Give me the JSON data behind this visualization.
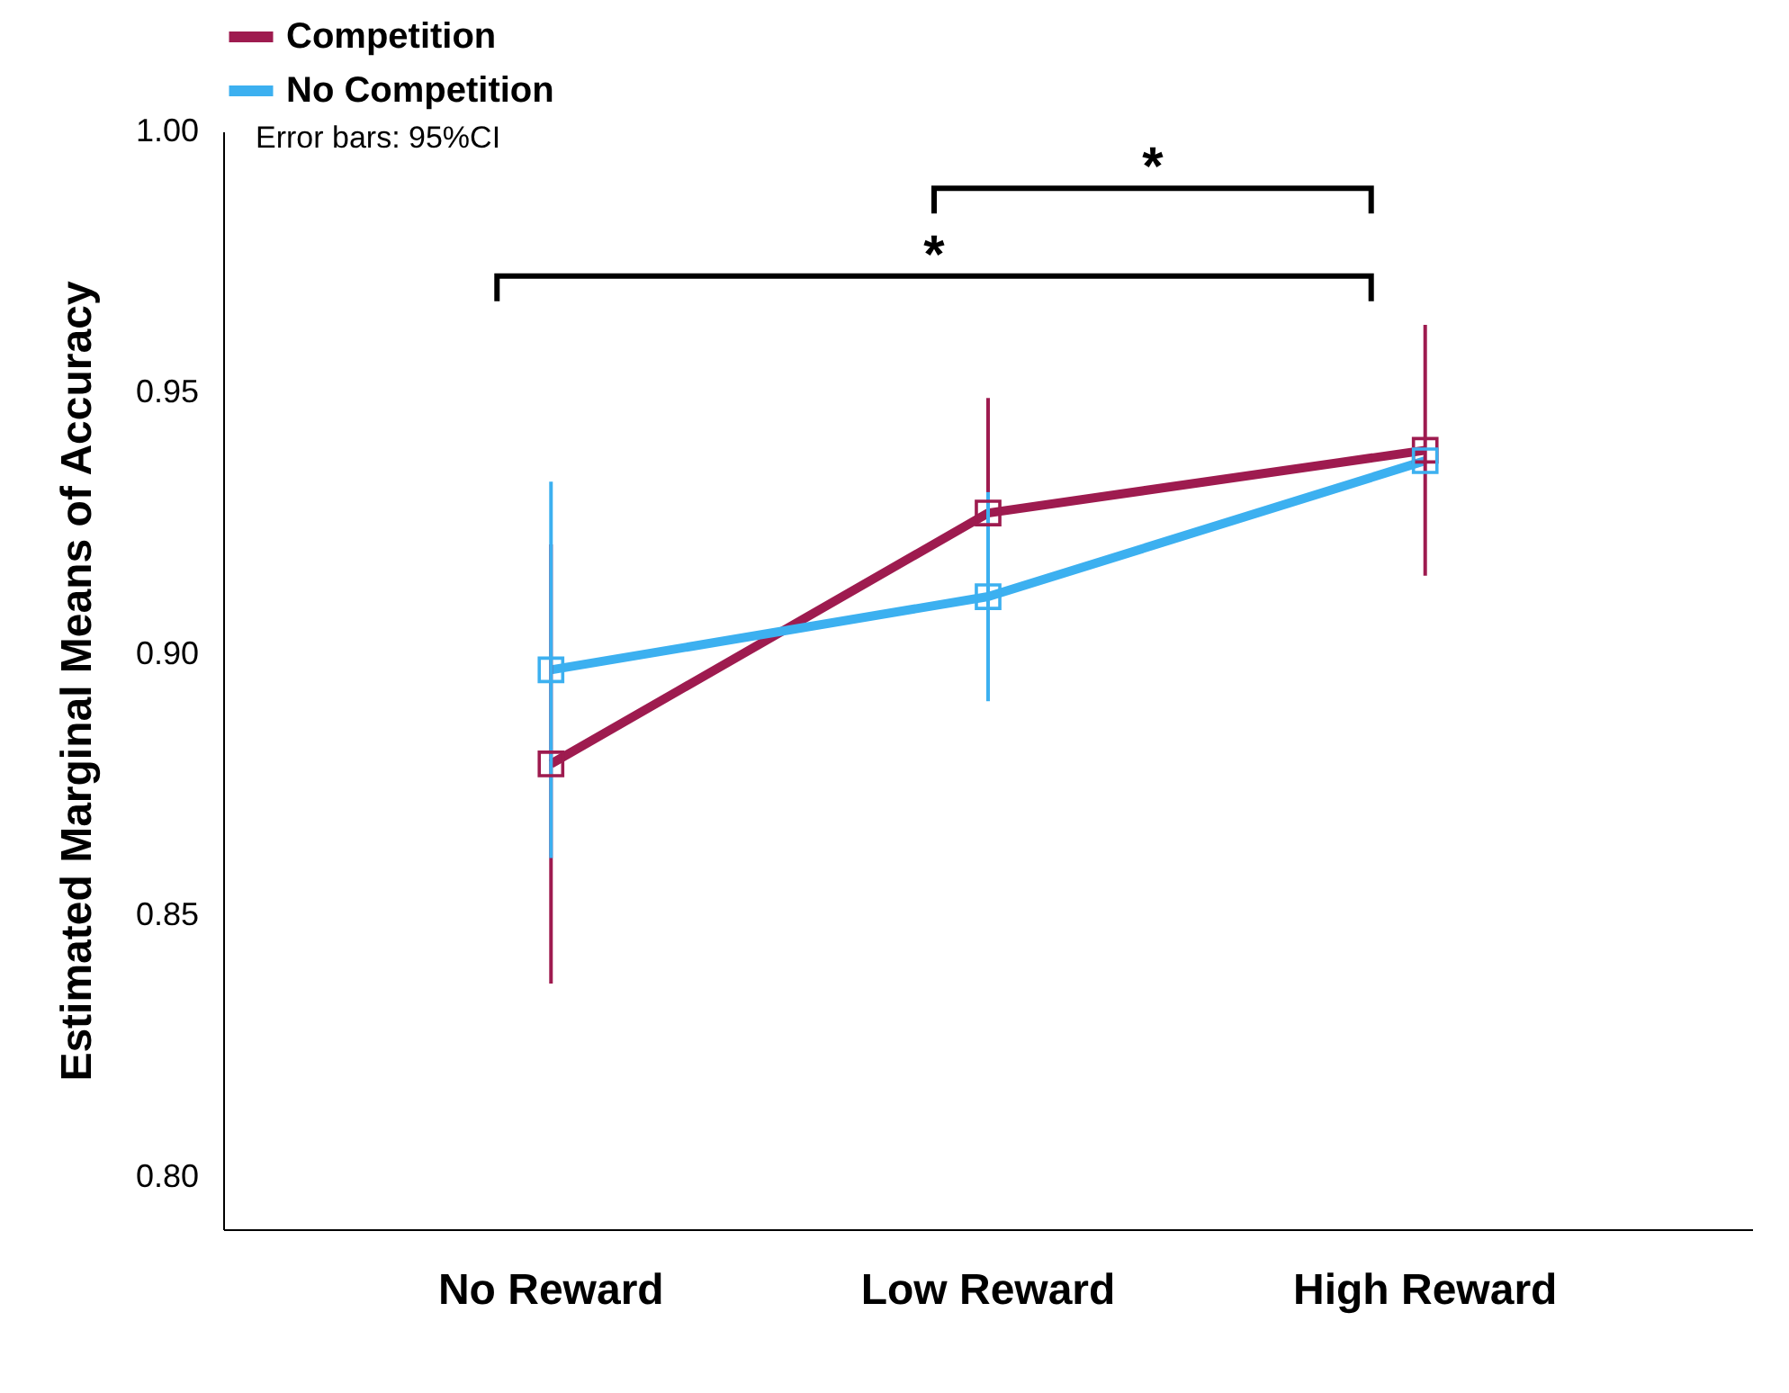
{
  "chart_data": {
    "type": "line",
    "ylabel": "Estimated Marginal Means of Accuracy",
    "categories": [
      "No Reward",
      "Low Reward",
      "High Reward"
    ],
    "series": [
      {
        "name": "Competition",
        "color": "#9e1b4f",
        "values": [
          0.879,
          0.927,
          0.939
        ],
        "errors": [
          [
            0.837,
            0.921
          ],
          [
            0.905,
            0.949
          ],
          [
            0.915,
            0.963
          ]
        ]
      },
      {
        "name": "No Competition",
        "color": "#3cb0f0",
        "values": [
          0.897,
          0.911,
          0.937
        ],
        "errors": [
          [
            0.861,
            0.933
          ],
          [
            0.891,
            0.931
          ],
          null
        ]
      }
    ],
    "ylim": [
      0.79,
      1.0
    ],
    "yticks": [
      {
        "value": 0.8,
        "label": "0.80"
      },
      {
        "value": 0.85,
        "label": "0.85"
      },
      {
        "value": 0.9,
        "label": "0.90"
      },
      {
        "value": 0.95,
        "label": "0.95"
      },
      {
        "value": 1.0,
        "label": "1.00"
      }
    ],
    "annotations": [
      "Error bars: 95%CI",
      "*",
      "*"
    ],
    "legend": "top left",
    "grid": false,
    "marker": "square",
    "line_style": "solid"
  }
}
